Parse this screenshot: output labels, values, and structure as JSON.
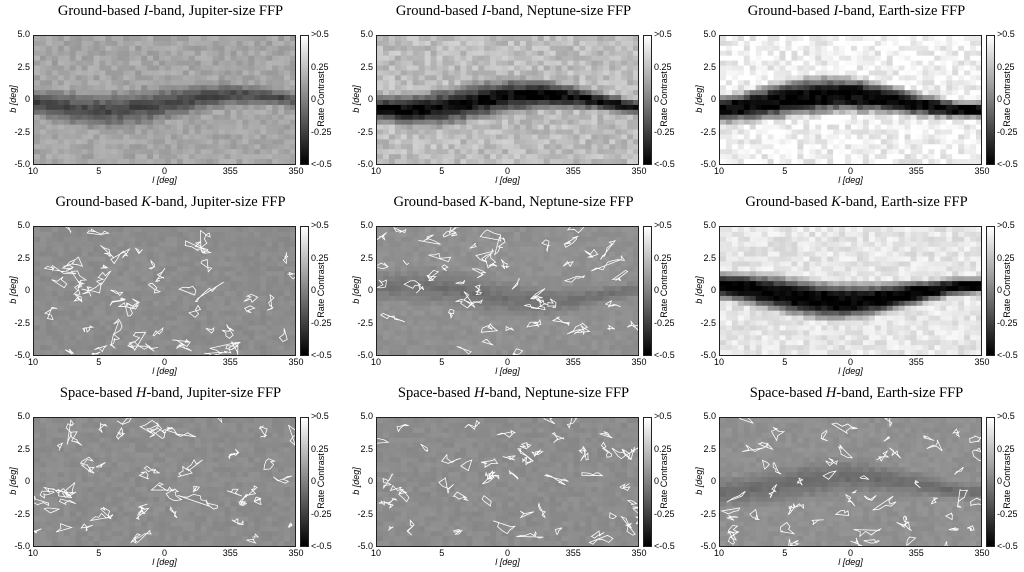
{
  "chart_data": [
    {
      "type": "heatmap",
      "title_pre": "Ground-based ",
      "band": "I",
      "title_post": "-band, Jupiter-size FFP",
      "base": "#a6a6a6",
      "band_color": "#1a1a1a",
      "noise": 0.25,
      "contours": false,
      "strength": 0.55
    },
    {
      "type": "heatmap",
      "title_pre": "Ground-based ",
      "band": "I",
      "title_post": "-band, Neptune-size FFP",
      "base": "#bdbdbd",
      "band_color": "#0a0a0a",
      "noise": 0.35,
      "contours": false,
      "strength": 0.85
    },
    {
      "type": "heatmap",
      "title_pre": "Ground-based ",
      "band": "I",
      "title_post": "-band, Earth-size FFP",
      "base": "#f2f2f2",
      "band_color": "#000000",
      "noise": 0.45,
      "contours": false,
      "strength": 1.0
    },
    {
      "type": "heatmap",
      "title_pre": "Ground-based ",
      "band": "K",
      "title_post": "-band, Jupiter-size FFP",
      "base": "#8c8c8c",
      "band_color": "#8c8c8c",
      "noise": 0.1,
      "contours": true,
      "strength": 0.05
    },
    {
      "type": "heatmap",
      "title_pre": "Ground-based ",
      "band": "K",
      "title_post": "-band, Neptune-size FFP",
      "base": "#909090",
      "band_color": "#4a4a4a",
      "noise": 0.1,
      "contours": true,
      "strength": 0.35
    },
    {
      "type": "heatmap",
      "title_pre": "Ground-based ",
      "band": "K",
      "title_post": "-band, Earth-size FFP",
      "base": "#e6e6e6",
      "band_color": "#000000",
      "noise": 0.3,
      "contours": false,
      "strength": 1.0
    },
    {
      "type": "heatmap",
      "title_pre": "Space-based ",
      "band": "H",
      "title_post": "-band, Jupiter-size FFP",
      "base": "#8c8c8c",
      "band_color": "#8c8c8c",
      "noise": 0.1,
      "contours": true,
      "strength": 0.0
    },
    {
      "type": "heatmap",
      "title_pre": "Space-based ",
      "band": "H",
      "title_post": "-band, Neptune-size FFP",
      "base": "#8c8c8c",
      "band_color": "#8c8c8c",
      "noise": 0.1,
      "contours": true,
      "strength": 0.0
    },
    {
      "type": "heatmap",
      "title_pre": "Space-based ",
      "band": "H",
      "title_post": "-band, Earth-size FFP",
      "base": "#909090",
      "band_color": "#333333",
      "noise": 0.1,
      "contours": true,
      "strength": 0.3
    }
  ],
  "axes": {
    "xlabel": "l [deg]",
    "ylabel": "b [deg]",
    "xticks": [
      "10",
      "5",
      "0",
      "355",
      "350"
    ],
    "yticks": [
      "5.0",
      "2.5",
      "0",
      "-2.5",
      "-5.0"
    ],
    "xlim": [
      10,
      -10
    ],
    "ylim": [
      -5,
      5
    ]
  },
  "colorbar": {
    "label": "Rate Contrast",
    "ticks": [
      ">0.5",
      "0.25",
      "0",
      "-0.25",
      "<-0.5"
    ],
    "range": [
      -0.5,
      0.5
    ],
    "top_color": "#ffffff",
    "mid_color": "#808080",
    "bottom_color": "#000000"
  }
}
